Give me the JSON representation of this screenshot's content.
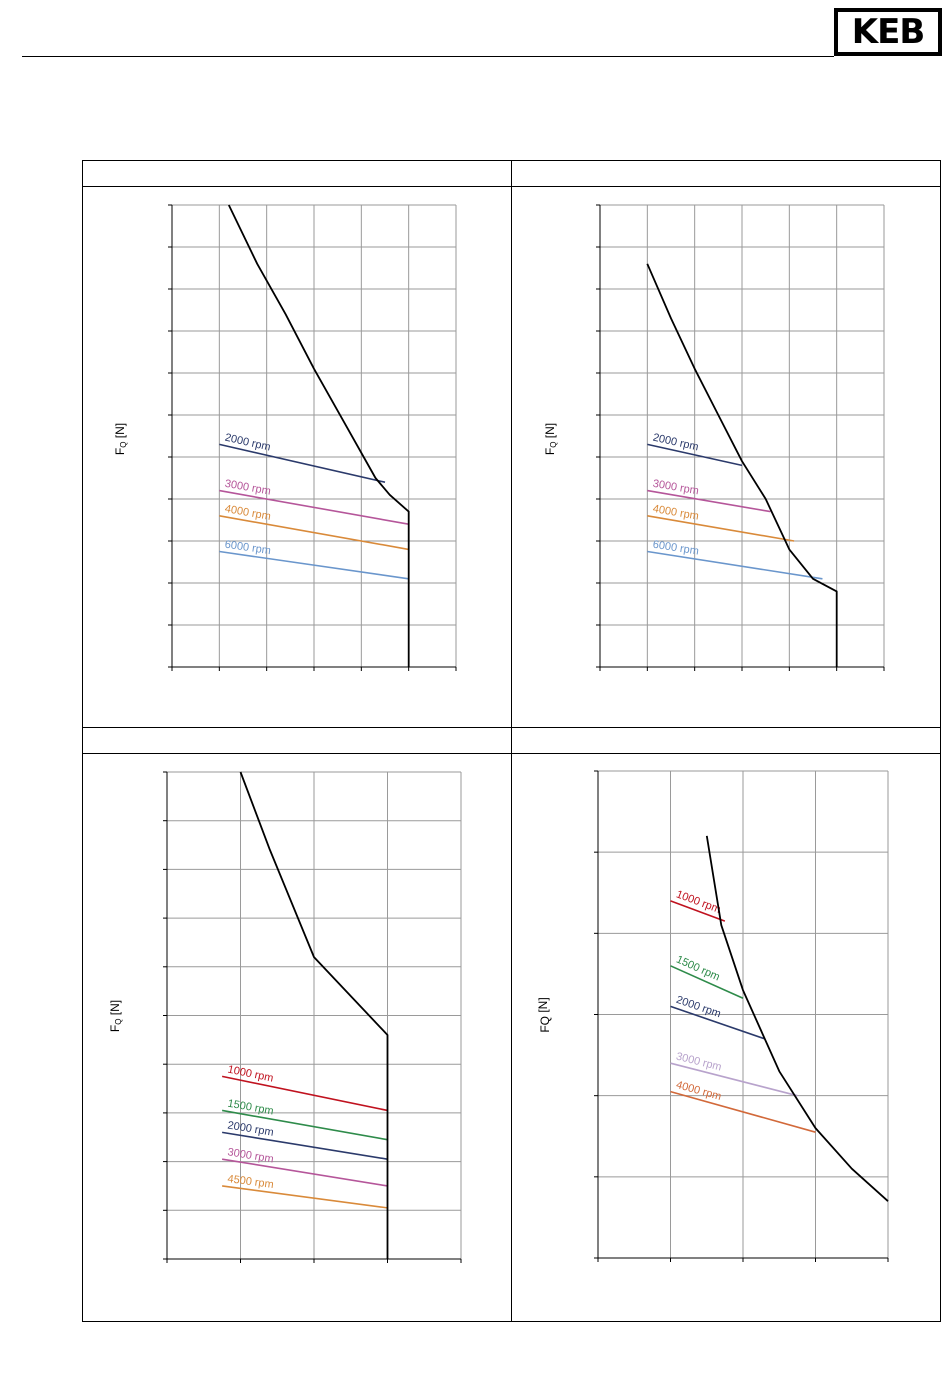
{
  "header": {
    "logo_text": "KEB"
  },
  "panels": [
    {
      "heading": "",
      "ylabel": "F",
      "ylabel_sub": "Q",
      "ylabel_unit": " [N]"
    },
    {
      "heading": "",
      "ylabel": "F",
      "ylabel_sub": "Q",
      "ylabel_unit": " [N]"
    },
    {
      "heading": "",
      "ylabel": "F",
      "ylabel_sub": "Q",
      "ylabel_unit": " [N]"
    },
    {
      "heading": "",
      "ylabel": "FQ",
      "ylabel_sub": "",
      "ylabel_unit": " [N]"
    }
  ],
  "chart_data": [
    {
      "type": "line",
      "xlim": [
        0,
        6
      ],
      "ylim": [
        0,
        11
      ],
      "x_ticks": 6,
      "y_ticks": 11,
      "limit_curve": {
        "color": "#000000",
        "points": [
          [
            1.2,
            11
          ],
          [
            1.8,
            9.6
          ],
          [
            2.4,
            8.4
          ],
          [
            3,
            7.1
          ],
          [
            3.6,
            5.9
          ],
          [
            4.3,
            4.5
          ],
          [
            4.6,
            4.1
          ],
          [
            5,
            3.7
          ],
          [
            5,
            0
          ]
        ]
      },
      "series": [
        {
          "name": "2000 rpm",
          "color": "#2b3a6b",
          "points": [
            [
              1,
              5.3
            ],
            [
              4.5,
              4.4
            ]
          ]
        },
        {
          "name": "3000 rpm",
          "color": "#b5569a",
          "points": [
            [
              1,
              4.2
            ],
            [
              5,
              3.4
            ]
          ]
        },
        {
          "name": "4000 rpm",
          "color": "#d98a3a",
          "points": [
            [
              1,
              3.6
            ],
            [
              5,
              2.8
            ]
          ]
        },
        {
          "name": "6000 rpm",
          "color": "#6a96cc",
          "points": [
            [
              1,
              2.75
            ],
            [
              5,
              2.1
            ]
          ]
        }
      ]
    },
    {
      "type": "line",
      "xlim": [
        0,
        6
      ],
      "ylim": [
        0,
        11
      ],
      "x_ticks": 6,
      "y_ticks": 11,
      "limit_curve": {
        "color": "#000000",
        "points": [
          [
            1,
            9.6
          ],
          [
            1.5,
            8.3
          ],
          [
            2,
            7.1
          ],
          [
            2.5,
            6
          ],
          [
            3,
            4.9
          ],
          [
            3.5,
            4
          ],
          [
            4,
            2.8
          ],
          [
            4.5,
            2.1
          ],
          [
            5,
            1.8
          ],
          [
            5,
            0
          ]
        ]
      },
      "series": [
        {
          "name": "2000 rpm",
          "color": "#2b3a6b",
          "points": [
            [
              1,
              5.3
            ],
            [
              3,
              4.8
            ]
          ]
        },
        {
          "name": "3000 rpm",
          "color": "#b5569a",
          "points": [
            [
              1,
              4.2
            ],
            [
              3.6,
              3.7
            ]
          ]
        },
        {
          "name": "4000 rpm",
          "color": "#d98a3a",
          "points": [
            [
              1,
              3.6
            ],
            [
              4.1,
              3
            ]
          ]
        },
        {
          "name": "6000 rpm",
          "color": "#6a96cc",
          "points": [
            [
              1,
              2.75
            ],
            [
              4.7,
              2.1
            ]
          ]
        }
      ]
    },
    {
      "type": "line",
      "xlim": [
        0,
        4
      ],
      "ylim": [
        0,
        10
      ],
      "x_ticks": 4,
      "y_ticks": 10,
      "limit_curve": {
        "color": "#000000",
        "points": [
          [
            1,
            10
          ],
          [
            1.4,
            8.4
          ],
          [
            2,
            6.2
          ],
          [
            3,
            4.6
          ],
          [
            3,
            0
          ]
        ]
      },
      "series": [
        {
          "name": "1000 rpm",
          "color": "#c0121f",
          "points": [
            [
              0.75,
              3.75
            ],
            [
              3,
              3.05
            ]
          ]
        },
        {
          "name": "1500 rpm",
          "color": "#2e8b4a",
          "points": [
            [
              0.75,
              3.05
            ],
            [
              3,
              2.45
            ]
          ]
        },
        {
          "name": "2000 rpm",
          "color": "#2b3a6b",
          "points": [
            [
              0.75,
              2.6
            ],
            [
              3,
              2.05
            ]
          ]
        },
        {
          "name": "3000 rpm",
          "color": "#b5569a",
          "points": [
            [
              0.75,
              2.05
            ],
            [
              3,
              1.5
            ]
          ]
        },
        {
          "name": "4500 rpm",
          "color": "#d98a3a",
          "points": [
            [
              0.75,
              1.5
            ],
            [
              3,
              1.05
            ]
          ]
        }
      ]
    },
    {
      "type": "line",
      "xlim": [
        0,
        4
      ],
      "ylim": [
        0,
        6
      ],
      "x_ticks": 4,
      "y_ticks": 6,
      "limit_curve": {
        "color": "#000000",
        "points": [
          [
            1.5,
            5.2
          ],
          [
            1.7,
            4.1
          ],
          [
            2,
            3.3
          ],
          [
            2.5,
            2.3
          ],
          [
            3,
            1.6
          ],
          [
            3.5,
            1.1
          ],
          [
            4,
            0.7
          ]
        ]
      },
      "series": [
        {
          "name": "1000 rpm",
          "color": "#c0121f",
          "points": [
            [
              1,
              4.4
            ],
            [
              1.75,
              4.15
            ]
          ]
        },
        {
          "name": "1500 rpm",
          "color": "#2e8b4a",
          "points": [
            [
              1,
              3.6
            ],
            [
              2,
              3.2
            ]
          ]
        },
        {
          "name": "2000 rpm",
          "color": "#2b3a6b",
          "points": [
            [
              1,
              3.1
            ],
            [
              2.3,
              2.7
            ]
          ]
        },
        {
          "name": "3000 rpm",
          "color": "#b8a3cc",
          "points": [
            [
              1,
              2.4
            ],
            [
              2.75,
              2
            ]
          ]
        },
        {
          "name": "4000 rpm",
          "color": "#d2693a",
          "points": [
            [
              1,
              2.05
            ],
            [
              3,
              1.55
            ]
          ]
        }
      ]
    }
  ]
}
